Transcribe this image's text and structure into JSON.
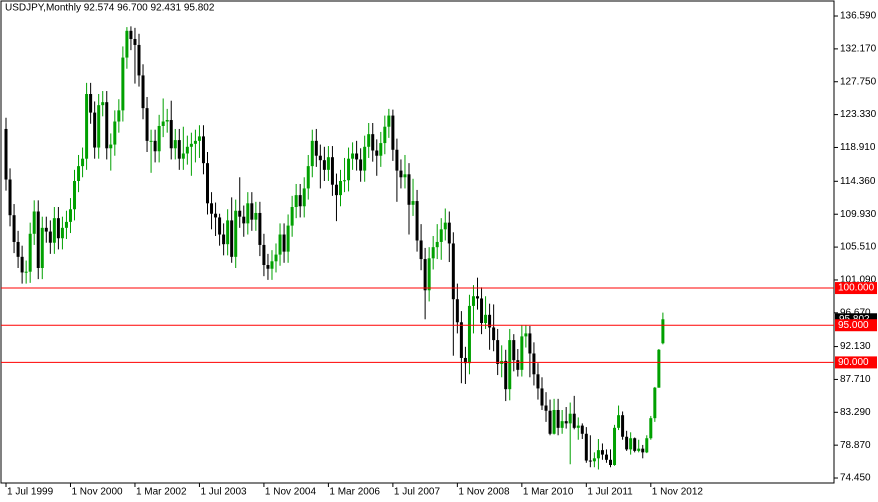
{
  "chart_data": {
    "type": "candlestick",
    "subtitle": "USDJPY,Monthly  92.574 96.700 92.431 95.802",
    "categories": [
      "1 Jul 1999",
      null,
      null,
      null,
      null,
      null,
      null,
      null,
      null,
      null,
      null,
      null,
      null,
      null,
      null,
      null,
      "1 Nov 2000",
      null,
      null,
      null,
      null,
      null,
      null,
      null,
      null,
      null,
      null,
      null,
      null,
      null,
      null,
      null,
      "1 Mar 2002",
      null,
      null,
      null,
      null,
      null,
      null,
      null,
      null,
      null,
      null,
      null,
      null,
      null,
      null,
      null,
      "1 Jul 2003",
      null,
      null,
      null,
      null,
      null,
      null,
      null,
      null,
      null,
      null,
      null,
      null,
      null,
      null,
      null,
      "1 Nov 2004",
      null,
      null,
      null,
      null,
      null,
      null,
      null,
      null,
      null,
      null,
      null,
      null,
      null,
      null,
      null,
      "1 Mar 2006",
      null,
      null,
      null,
      null,
      null,
      null,
      null,
      null,
      null,
      null,
      null,
      null,
      null,
      null,
      null,
      "1 Jul 2007",
      null,
      null,
      null,
      null,
      null,
      null,
      null,
      null,
      null,
      null,
      null,
      null,
      null,
      null,
      null,
      "1 Nov 2008",
      null,
      null,
      null,
      null,
      null,
      null,
      null,
      null,
      null,
      null,
      null,
      null,
      null,
      null,
      null,
      "1 Mar 2010",
      null,
      null,
      null,
      null,
      null,
      null,
      null,
      null,
      null,
      null,
      null,
      null,
      null,
      null,
      null,
      "1 Jul 2011",
      null,
      null,
      null,
      null,
      null,
      null,
      null,
      null,
      null,
      null,
      null,
      null,
      null,
      null,
      null,
      "1 Nov 2012",
      null,
      null,
      null
    ],
    "open": [
      121.4,
      114.6,
      109.8,
      106.2,
      104.2,
      102.1,
      102.2,
      107.3,
      110.3,
      102.7,
      108.1,
      107.6,
      106.1,
      109.4,
      106.7,
      108.1,
      108.9,
      110.6,
      114.4,
      116.4,
      117.4,
      126.1,
      123.6,
      118.9,
      124.6,
      125.0,
      118.8,
      119.3,
      122.4,
      123.9,
      131.0,
      134.6,
      133.5,
      132.7,
      128.6,
      124.2,
      119.8,
      119.8,
      118.4,
      121.8,
      122.4,
      122.6,
      118.8,
      119.9,
      117.4,
      118.1,
      119.0,
      119.4,
      119.8,
      120.4,
      116.8,
      111.4,
      110.0,
      109.5,
      107.2,
      105.9,
      109.1,
      104.2,
      110.4,
      109.6,
      108.7,
      111.4,
      109.2,
      110.1,
      105.8,
      103.1,
      102.6,
      103.6,
      104.5,
      107.2,
      104.9,
      108.4,
      110.9,
      112.5,
      111.0,
      113.4,
      116.4,
      119.8,
      117.8,
      117.2,
      115.9,
      117.6,
      113.9,
      112.5,
      114.4,
      114.5,
      117.4,
      118.1,
      117.3,
      115.8,
      119.0,
      120.7,
      118.5,
      117.8,
      119.5,
      121.7,
      123.2,
      118.6,
      115.8,
      114.9,
      115.3,
      111.2,
      111.7,
      106.4,
      103.9,
      99.7,
      104.0,
      105.5,
      106.2,
      107.9,
      108.8,
      106.0,
      98.5,
      95.4,
      90.6,
      89.9,
      97.6,
      98.9,
      98.6,
      95.3,
      96.4,
      94.7,
      93.0,
      89.8,
      90.2,
      86.4,
      93.0,
      90.3,
      89.0,
      93.5,
      93.9,
      91.2,
      88.4,
      86.5,
      84.2,
      83.5,
      80.4,
      83.6,
      81.2,
      82.1,
      81.8,
      83.1,
      81.2,
      81.5,
      80.4,
      76.8,
      76.7,
      77.1,
      78.2,
      77.6,
      76.9,
      76.2,
      81.2,
      82.9,
      80.0,
      78.3,
      79.8,
      78.1,
      78.4,
      77.9,
      79.8,
      82.5,
      86.6,
      92.574
    ],
    "high": [
      122.9,
      116.1,
      111.3,
      107.7,
      105.7,
      103.7,
      108.8,
      111.8,
      111.8,
      109.6,
      109.6,
      109.1,
      110.9,
      110.9,
      109.6,
      110.4,
      112.1,
      115.9,
      117.9,
      118.9,
      127.6,
      127.6,
      125.1,
      126.1,
      126.5,
      126.5,
      120.8,
      123.9,
      125.4,
      132.5,
      135.1,
      135.2,
      135.0,
      134.2,
      130.1,
      125.7,
      121.3,
      121.3,
      123.3,
      125.5,
      124.1,
      125.2,
      121.4,
      121.4,
      121.7,
      120.5,
      120.9,
      121.3,
      121.9,
      121.9,
      118.3,
      112.9,
      111.5,
      110.0,
      108.7,
      110.6,
      112.2,
      111.9,
      114.9,
      111.1,
      112.9,
      112.9,
      111.6,
      111.6,
      107.3,
      104.6,
      105.1,
      106.0,
      108.7,
      108.7,
      109.9,
      112.4,
      114.0,
      114.0,
      114.9,
      117.9,
      121.3,
      121.4,
      119.3,
      119.0,
      119.1,
      119.1,
      115.4,
      115.9,
      117.5,
      118.9,
      119.6,
      119.8,
      118.8,
      120.5,
      122.2,
      122.2,
      120.0,
      121.0,
      123.2,
      124.1,
      124.0,
      120.1,
      117.3,
      117.9,
      116.8,
      114.7,
      113.2,
      108.6,
      105.4,
      105.5,
      107.0,
      108.6,
      109.4,
      110.7,
      110.3,
      107.5,
      100.6,
      96.9,
      92.1,
      99.1,
      100.4,
      101.4,
      100.1,
      98.9,
      97.9,
      97.8,
      94.5,
      92.3,
      91.7,
      94.5,
      93.8,
      91.8,
      95.0,
      95.0,
      94.9,
      92.7,
      89.9,
      88.0,
      86.0,
      85.0,
      85.1,
      85.1,
      83.6,
      84.0,
      84.6,
      85.5,
      82.6,
      81.8,
      81.3,
      80.2,
      77.9,
      79.7,
      79.1,
      78.3,
      78.3,
      81.6,
      84.2,
      83.4,
      80.8,
      80.6,
      79.9,
      79.6,
      78.9,
      80.2,
      82.8,
      86.7,
      91.8,
      96.7
    ],
    "low": [
      113.1,
      108.3,
      104.7,
      102.7,
      100.6,
      100.6,
      100.7,
      105.8,
      101.2,
      101.2,
      106.1,
      104.6,
      104.6,
      105.2,
      105.2,
      106.6,
      107.4,
      109.1,
      112.9,
      114.9,
      115.9,
      122.1,
      117.4,
      117.4,
      123.1,
      117.3,
      115.8,
      117.8,
      120.9,
      122.4,
      129.5,
      132.0,
      127.5,
      127.1,
      122.7,
      118.3,
      115.5,
      116.9,
      116.9,
      120.3,
      120.9,
      117.3,
      117.3,
      115.9,
      115.9,
      116.6,
      115.1,
      116.9,
      117.5,
      115.3,
      109.9,
      107.9,
      107.0,
      105.7,
      104.4,
      104.4,
      103.4,
      102.7,
      108.1,
      106.9,
      107.2,
      107.7,
      107.7,
      104.3,
      101.6,
      101.1,
      101.1,
      102.1,
      103.0,
      103.4,
      103.4,
      106.9,
      109.4,
      109.5,
      109.5,
      111.9,
      114.9,
      116.3,
      113.4,
      114.4,
      114.4,
      112.4,
      109.0,
      111.0,
      112.9,
      113.0,
      115.9,
      115.8,
      114.3,
      114.3,
      117.5,
      117.0,
      115.1,
      116.3,
      118.0,
      120.2,
      117.1,
      111.6,
      113.4,
      113.4,
      107.2,
      109.7,
      104.9,
      102.4,
      95.8,
      98.2,
      102.5,
      103.9,
      103.8,
      106.4,
      103.5,
      90.9,
      93.9,
      87.2,
      87.1,
      88.4,
      93.9,
      97.1,
      93.8,
      94.5,
      91.7,
      91.5,
      88.3,
      88.0,
      84.8,
      84.9,
      88.8,
      88.1,
      88.1,
      92.0,
      88.0,
      86.9,
      85.0,
      83.6,
      82.0,
      80.2,
      80.3,
      80.2,
      80.4,
      81.1,
      76.3,
      81.0,
      79.6,
      79.7,
      76.5,
      75.9,
      75.9,
      75.6,
      76.9,
      76.5,
      75.9,
      76.1,
      80.9,
      79.6,
      78.1,
      77.6,
      77.9,
      77.9,
      77.1,
      77.8,
      79.6,
      82.0,
      86.6,
      92.431
    ],
    "close": [
      114.6,
      109.8,
      106.2,
      104.2,
      102.1,
      102.2,
      107.3,
      110.3,
      102.7,
      108.1,
      107.6,
      106.1,
      109.4,
      106.7,
      108.1,
      108.9,
      110.6,
      114.4,
      116.4,
      117.4,
      126.1,
      123.6,
      118.9,
      124.6,
      125.0,
      118.8,
      119.3,
      122.4,
      123.9,
      131.0,
      134.6,
      133.5,
      132.7,
      128.6,
      124.2,
      119.8,
      119.8,
      118.4,
      121.8,
      122.4,
      122.6,
      118.8,
      119.9,
      117.4,
      118.1,
      119.0,
      119.4,
      119.8,
      120.4,
      116.8,
      111.4,
      110.0,
      109.5,
      107.2,
      105.9,
      109.1,
      104.2,
      110.4,
      109.6,
      108.7,
      111.4,
      109.2,
      110.1,
      105.8,
      103.1,
      102.6,
      103.6,
      104.5,
      107.2,
      104.9,
      108.4,
      110.9,
      112.5,
      111.0,
      113.4,
      116.4,
      119.8,
      117.8,
      117.2,
      115.9,
      117.6,
      113.9,
      112.5,
      114.4,
      114.5,
      117.4,
      118.1,
      117.3,
      115.8,
      119.0,
      120.7,
      118.5,
      117.8,
      119.5,
      121.7,
      123.2,
      118.6,
      115.8,
      114.9,
      115.3,
      111.2,
      111.7,
      106.4,
      103.9,
      99.7,
      104.0,
      105.5,
      106.2,
      107.9,
      108.8,
      106.0,
      98.5,
      95.4,
      90.6,
      89.9,
      97.6,
      98.9,
      98.6,
      95.3,
      96.4,
      94.7,
      93.0,
      89.8,
      90.2,
      86.4,
      93.0,
      90.3,
      89.0,
      93.5,
      93.9,
      91.2,
      88.4,
      86.5,
      84.2,
      83.5,
      80.4,
      83.6,
      81.2,
      82.1,
      81.8,
      83.1,
      81.2,
      81.5,
      80.4,
      76.8,
      76.7,
      77.1,
      78.2,
      77.6,
      76.9,
      76.2,
      81.2,
      82.9,
      80.0,
      78.3,
      79.8,
      78.1,
      78.4,
      77.9,
      79.8,
      82.5,
      86.6,
      91.7,
      95.802
    ],
    "up_color": "#00a000",
    "down_color": "#000000",
    "ylim": [
      73.78,
      138.61
    ],
    "yticks": [
      {
        "value": 136.59,
        "label": "136.590"
      },
      {
        "value": 132.17,
        "label": "132.170"
      },
      {
        "value": 127.75,
        "label": "127.750"
      },
      {
        "value": 123.33,
        "label": "123.330"
      },
      {
        "value": 118.91,
        "label": "118.910"
      },
      {
        "value": 114.36,
        "label": "114.360"
      },
      {
        "value": 109.93,
        "label": "109.930"
      },
      {
        "value": 105.51,
        "label": "105.510"
      },
      {
        "value": 101.09,
        "label": "101.090"
      },
      {
        "value": 96.67,
        "label": "96.670"
      },
      {
        "value": 92.13,
        "label": "92.130"
      },
      {
        "value": 87.71,
        "label": "87.710"
      },
      {
        "value": 83.29,
        "label": "83.290"
      },
      {
        "value": 78.87,
        "label": "78.870"
      },
      {
        "value": 74.45,
        "label": "74.450"
      }
    ],
    "levels": [
      {
        "value": 100,
        "label": "100.000"
      },
      {
        "value": 95,
        "label": "95.000"
      },
      {
        "value": 90,
        "label": "90.000"
      }
    ],
    "level_color": "#ff0000"
  }
}
